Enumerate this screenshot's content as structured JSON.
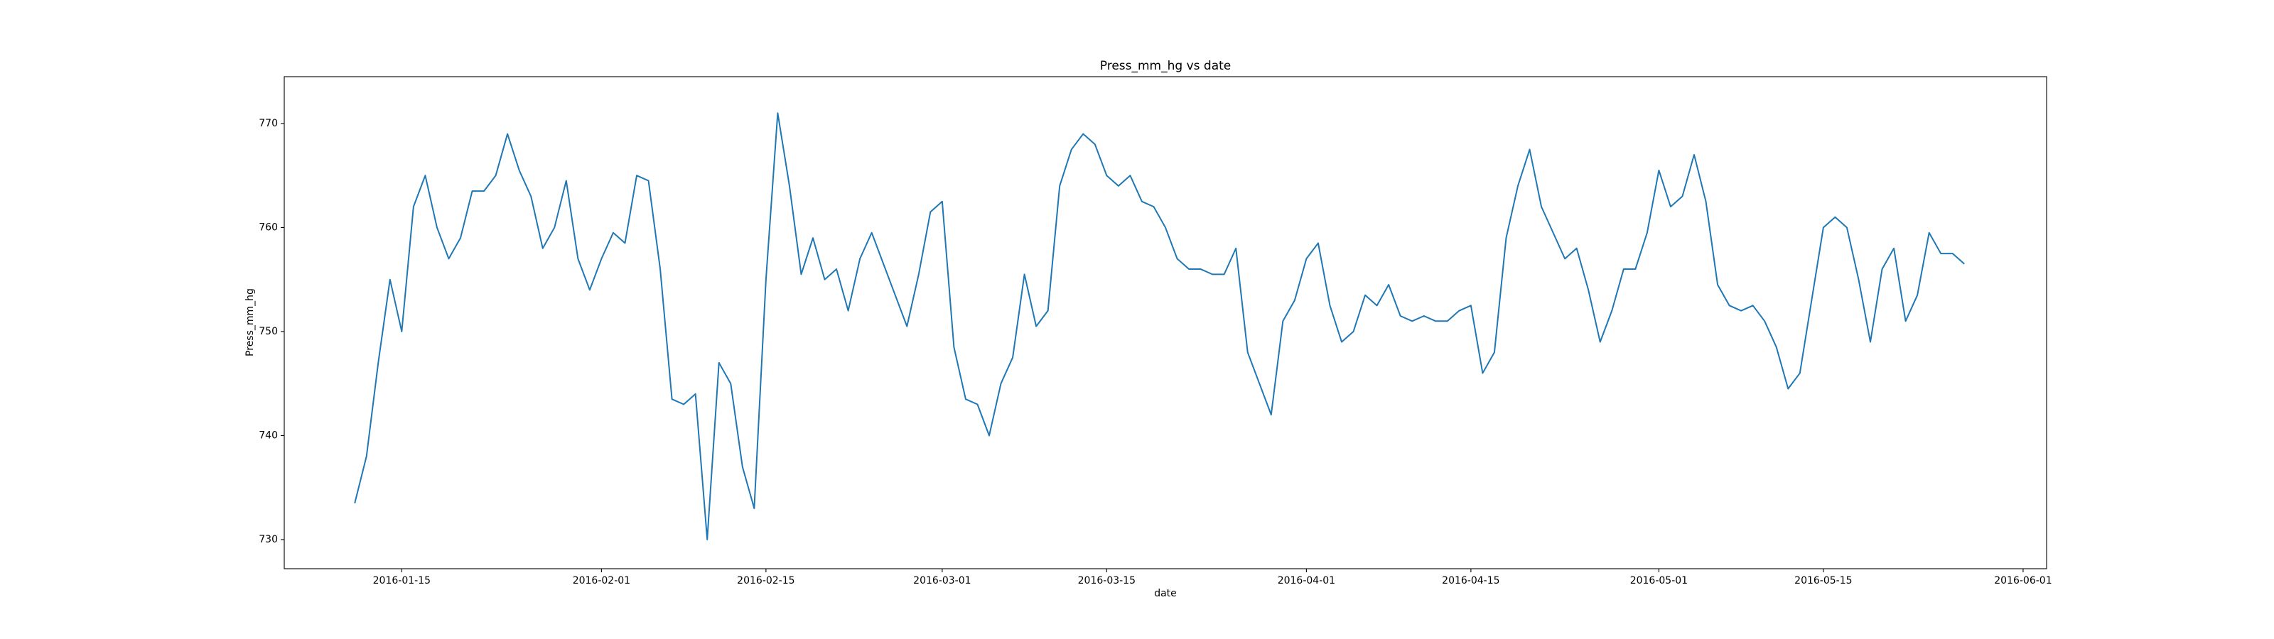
{
  "chart_data": {
    "type": "line",
    "title": "Press_mm_hg vs date",
    "xlabel": "date",
    "ylabel": "Press_mm_hg",
    "x": [
      "2016-01-11",
      "2016-01-12",
      "2016-01-13",
      "2016-01-14",
      "2016-01-15",
      "2016-01-16",
      "2016-01-17",
      "2016-01-18",
      "2016-01-19",
      "2016-01-20",
      "2016-01-21",
      "2016-01-22",
      "2016-01-23",
      "2016-01-24",
      "2016-01-25",
      "2016-01-26",
      "2016-01-27",
      "2016-01-28",
      "2016-01-29",
      "2016-01-30",
      "2016-01-31",
      "2016-02-01",
      "2016-02-02",
      "2016-02-03",
      "2016-02-04",
      "2016-02-05",
      "2016-02-06",
      "2016-02-07",
      "2016-02-08",
      "2016-02-09",
      "2016-02-10",
      "2016-02-11",
      "2016-02-12",
      "2016-02-13",
      "2016-02-14",
      "2016-02-15",
      "2016-02-16",
      "2016-02-17",
      "2016-02-18",
      "2016-02-19",
      "2016-02-20",
      "2016-02-21",
      "2016-02-22",
      "2016-02-23",
      "2016-02-24",
      "2016-02-25",
      "2016-02-26",
      "2016-02-27",
      "2016-02-28",
      "2016-02-29",
      "2016-03-01",
      "2016-03-02",
      "2016-03-03",
      "2016-03-04",
      "2016-03-05",
      "2016-03-06",
      "2016-03-07",
      "2016-03-08",
      "2016-03-09",
      "2016-03-10",
      "2016-03-11",
      "2016-03-12",
      "2016-03-13",
      "2016-03-14",
      "2016-03-15",
      "2016-03-16",
      "2016-03-17",
      "2016-03-18",
      "2016-03-19",
      "2016-03-20",
      "2016-03-21",
      "2016-03-22",
      "2016-03-23",
      "2016-03-24",
      "2016-03-25",
      "2016-03-26",
      "2016-03-27",
      "2016-03-28",
      "2016-03-29",
      "2016-03-30",
      "2016-03-31",
      "2016-04-01",
      "2016-04-02",
      "2016-04-03",
      "2016-04-04",
      "2016-04-05",
      "2016-04-06",
      "2016-04-07",
      "2016-04-08",
      "2016-04-09",
      "2016-04-10",
      "2016-04-11",
      "2016-04-12",
      "2016-04-13",
      "2016-04-14",
      "2016-04-15",
      "2016-04-16",
      "2016-04-17",
      "2016-04-18",
      "2016-04-19",
      "2016-04-20",
      "2016-04-21",
      "2016-04-22",
      "2016-04-23",
      "2016-04-24",
      "2016-04-25",
      "2016-04-26",
      "2016-04-27",
      "2016-04-28",
      "2016-04-29",
      "2016-04-30",
      "2016-05-01",
      "2016-05-02",
      "2016-05-03",
      "2016-05-04",
      "2016-05-05",
      "2016-05-06",
      "2016-05-07",
      "2016-05-08",
      "2016-05-09",
      "2016-05-10",
      "2016-05-11",
      "2016-05-12",
      "2016-05-13",
      "2016-05-14",
      "2016-05-15",
      "2016-05-16",
      "2016-05-17",
      "2016-05-18",
      "2016-05-19",
      "2016-05-20",
      "2016-05-21",
      "2016-05-22",
      "2016-05-23",
      "2016-05-24",
      "2016-05-25",
      "2016-05-26",
      "2016-05-27"
    ],
    "series": [
      {
        "color": "#1f77b4",
        "values": [
          733.5,
          738,
          747,
          755,
          750,
          762,
          765,
          760,
          757,
          759,
          763.5,
          763.5,
          765,
          769,
          765.5,
          763,
          758,
          760,
          764.5,
          757,
          754,
          757,
          759.5,
          758.5,
          765,
          764.5,
          756,
          743.5,
          743,
          744,
          730,
          747,
          745,
          737,
          733,
          755,
          771,
          764,
          755.5,
          759,
          755,
          756,
          752,
          757,
          759.5,
          756.5,
          753.5,
          750.5,
          755.5,
          761.5,
          762.5,
          748.5,
          743.5,
          743,
          740,
          745,
          747.5,
          755.5,
          750.5,
          752,
          764,
          767.5,
          769,
          768,
          765,
          764,
          765,
          762.5,
          762,
          760,
          757,
          756,
          756,
          755.5,
          755.5,
          758,
          748,
          745,
          742,
          751,
          753,
          757,
          758.5,
          752.5,
          749,
          750,
          753.5,
          752.5,
          754.5,
          751.5,
          751,
          751.5,
          751,
          751,
          752,
          752.5,
          746,
          748,
          759,
          764,
          767.5,
          762,
          759.5,
          757,
          758,
          754,
          749,
          752,
          756,
          756,
          759.5,
          765.5,
          762,
          763,
          767,
          762.5,
          754.5,
          752.5,
          752,
          752.5,
          751,
          748.5,
          744.5,
          746,
          753,
          760,
          761,
          760,
          755,
          749,
          756,
          758,
          751,
          753.5,
          759.5,
          757.5,
          757.5,
          756.5
        ]
      }
    ],
    "xlim": [
      "2016-01-05",
      "2016-06-03"
    ],
    "xticks": [
      "2016-01-15",
      "2016-02-01",
      "2016-02-15",
      "2016-03-01",
      "2016-03-15",
      "2016-04-01",
      "2016-04-15",
      "2016-05-01",
      "2016-05-15",
      "2016-06-01"
    ],
    "ylim": [
      727.2,
      774.5
    ],
    "yticks": [
      730,
      740,
      750,
      760,
      770
    ],
    "grid": false
  }
}
